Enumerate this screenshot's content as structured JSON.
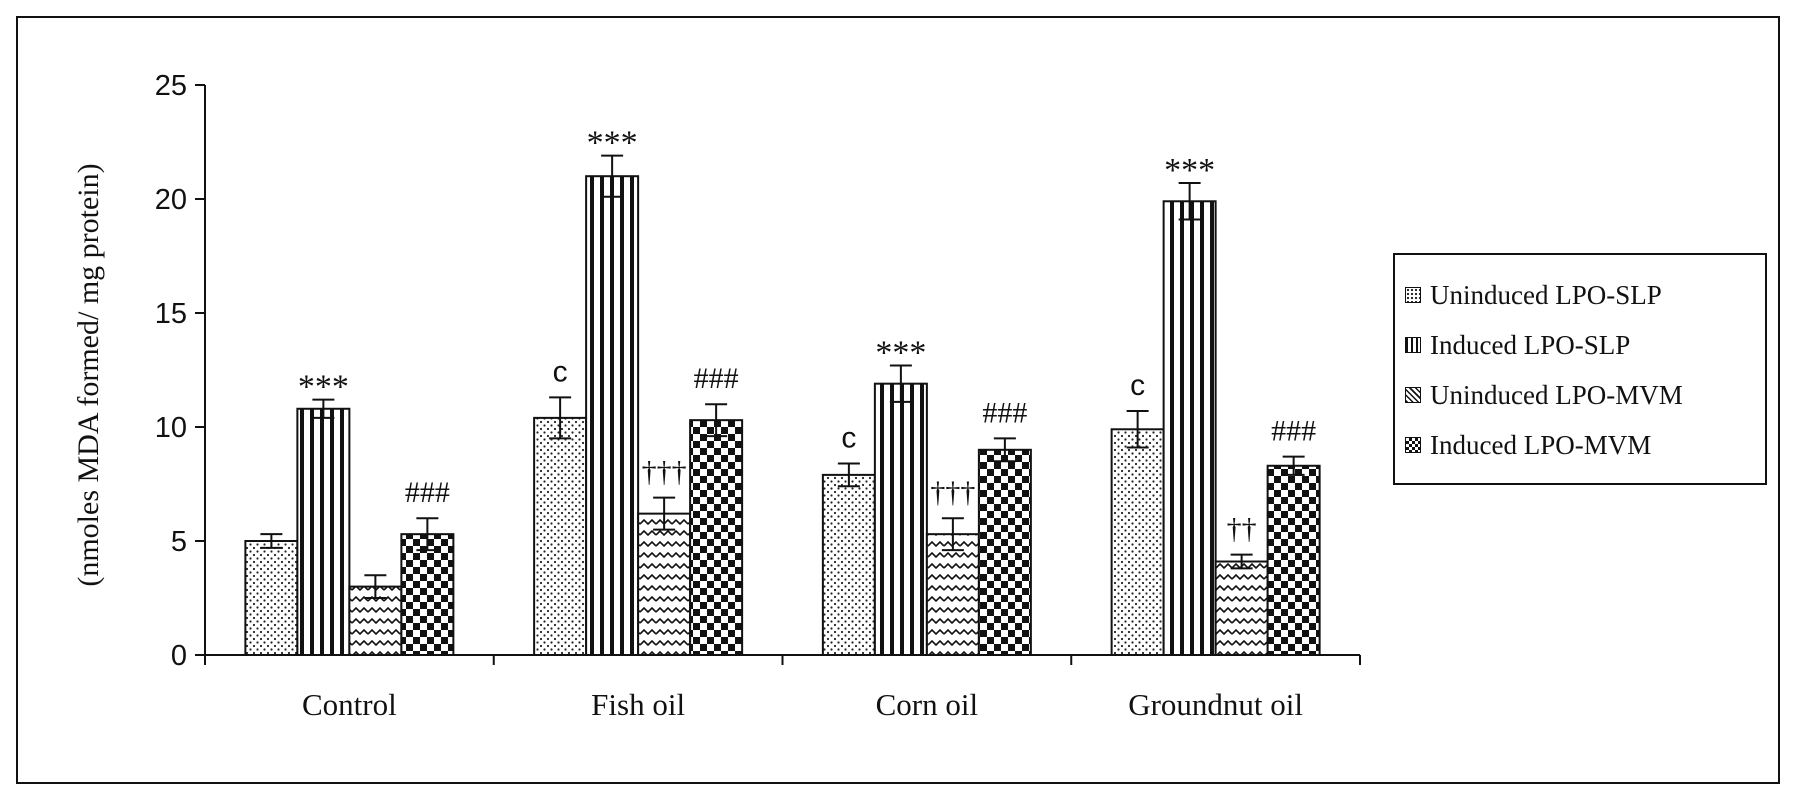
{
  "chart_data": {
    "type": "bar",
    "title": "",
    "xlabel": "",
    "ylabel": "(nmoles MDA formed/ mg protein)",
    "ylim": [
      0,
      25
    ],
    "yticks": [
      0,
      5,
      10,
      15,
      20,
      25
    ],
    "grid": false,
    "legend_position": "right",
    "categories": [
      "Control",
      "Fish oil",
      "Corn oil",
      "Groundnut oil"
    ],
    "series": [
      {
        "name": "Uninduced LPO-SLP",
        "pattern": "dots",
        "values": [
          5.0,
          10.4,
          7.9,
          9.9
        ],
        "errors": [
          0.3,
          0.9,
          0.5,
          0.8
        ],
        "annotations": [
          "",
          "c",
          "c",
          "c"
        ]
      },
      {
        "name": "Induced LPO-SLP",
        "pattern": "vertical-stripes",
        "values": [
          10.8,
          21.0,
          11.9,
          19.9
        ],
        "errors": [
          0.4,
          0.9,
          0.8,
          0.8
        ],
        "annotations": [
          "***",
          "***",
          "***",
          "***"
        ]
      },
      {
        "name": "Uninduced LPO-MVM",
        "pattern": "zigzag",
        "values": [
          3.0,
          6.2,
          5.3,
          4.1
        ],
        "errors": [
          0.5,
          0.7,
          0.7,
          0.3
        ],
        "annotations": [
          "",
          "†††",
          "†††",
          "††"
        ]
      },
      {
        "name": "Induced LPO-MVM",
        "pattern": "checker",
        "values": [
          5.3,
          10.3,
          9.0,
          8.3
        ],
        "errors": [
          0.7,
          0.7,
          0.5,
          0.4
        ],
        "annotations": [
          "###",
          "###",
          "###",
          "###"
        ]
      }
    ]
  }
}
